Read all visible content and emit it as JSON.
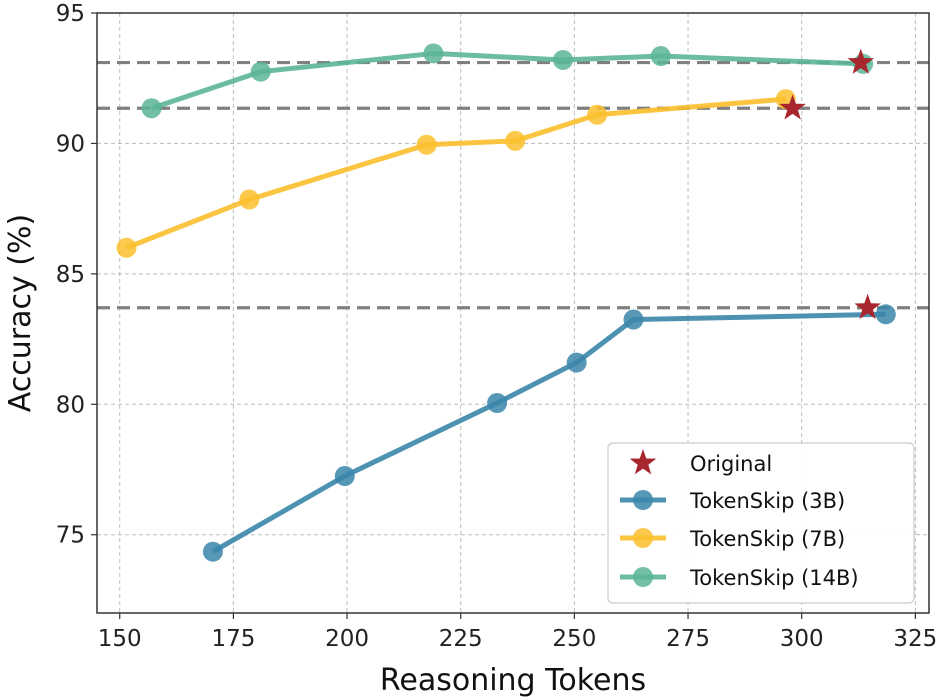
{
  "chart_data": {
    "type": "line",
    "xlabel": "Reasoning Tokens",
    "ylabel": "Accuracy (%)",
    "xlim": [
      145,
      328
    ],
    "ylim": [
      72,
      95
    ],
    "xticks": [
      150,
      175,
      200,
      225,
      250,
      275,
      300,
      325
    ],
    "yticks": [
      75,
      80,
      85,
      90,
      95
    ],
    "grid": true,
    "legend_position": "lower-right",
    "original_label": "Original",
    "reference_lines": [
      93.1,
      91.35,
      83.7
    ],
    "series": [
      {
        "name": "TokenSkip (3B)",
        "color": "#3b86aa",
        "x": [
          170.5,
          199.5,
          233,
          250.5,
          263,
          318.5
        ],
        "y": [
          74.35,
          77.25,
          80.05,
          81.6,
          83.25,
          83.45
        ],
        "original": {
          "x": 314.5,
          "y": 83.7
        }
      },
      {
        "name": "TokenSkip (7B)",
        "color": "#fbbf2d",
        "x": [
          151.5,
          178.5,
          217.5,
          237,
          255,
          296.5
        ],
        "y": [
          86.0,
          87.85,
          89.95,
          90.1,
          91.1,
          91.7
        ],
        "original": {
          "x": 298,
          "y": 91.35
        }
      },
      {
        "name": "TokenSkip (14B)",
        "color": "#5bb597",
        "x": [
          157,
          181,
          219,
          247.5,
          269,
          313.5
        ],
        "y": [
          91.35,
          92.75,
          93.45,
          93.2,
          93.35,
          93.05
        ],
        "original": {
          "x": 313,
          "y": 93.1
        }
      }
    ],
    "original_color": "#a8262e",
    "reference_line_color": "#808080"
  }
}
